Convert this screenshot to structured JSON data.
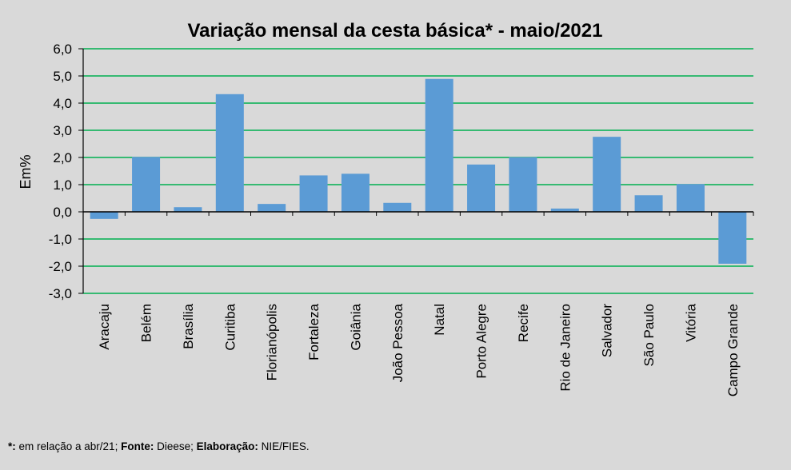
{
  "chart_data": {
    "type": "bar",
    "title": "Variação  mensal da cesta básica*  - maio/2021",
    "ylabel": "Em%",
    "xlabel": "",
    "ylim": [
      -3,
      6
    ],
    "yticks": [
      6,
      5,
      4,
      3,
      2,
      1,
      0,
      -1,
      -2,
      -3
    ],
    "ytick_labels": [
      "6,0",
      "5,0",
      "4,0",
      "3,0",
      "2,0",
      "1,0",
      "0,0",
      "-1,0",
      "-2,0",
      "-3,0"
    ],
    "grid": true,
    "categories": [
      "Aracaju",
      "Belém",
      "Brasília",
      "Curitiba",
      "Florianópolis",
      "Fortaleza",
      "Goiânia",
      "João Pessoa",
      "Natal",
      "Porto Alegre",
      "Recife",
      "Rio de Janeiro",
      "Salvador",
      "São Paulo",
      "Vitória",
      "Campo Grande"
    ],
    "values": [
      -0.26,
      2.02,
      0.17,
      4.33,
      0.29,
      1.34,
      1.4,
      0.33,
      4.89,
      1.74,
      2.01,
      0.12,
      2.76,
      0.61,
      1.02,
      -1.91
    ],
    "colors": {
      "bar": "#5b9bd5",
      "grid": "#00b050",
      "background": "#d9d9d9",
      "axis": "#000000"
    }
  },
  "footnote": {
    "asterisk_label": "*:",
    "asterisk_text": " em relação a abr/21; ",
    "source_label": "Fonte:",
    "source_text": " Dieese; ",
    "elaboration_label": "Elaboração:",
    "elaboration_text": " NIE/FIES."
  }
}
